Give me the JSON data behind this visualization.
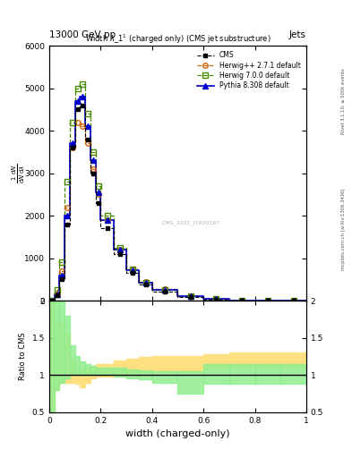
{
  "title": "Width $\\lambda\\_1^1$ (charged only) (CMS jet substructure)",
  "header_left": "13000 GeV pp",
  "header_right": "Jets",
  "xlabel": "width (charged-only)",
  "ylabel_ratio": "Ratio to CMS",
  "watermark": "CMS_2021_I1920187",
  "ylim_main": [
    0,
    6000
  ],
  "ylim_ratio": [
    0.5,
    2.0
  ],
  "xlim": [
    0.0,
    1.0
  ],
  "bin_edges": [
    0.0,
    0.02,
    0.04,
    0.06,
    0.08,
    0.1,
    0.12,
    0.14,
    0.16,
    0.18,
    0.2,
    0.25,
    0.3,
    0.35,
    0.4,
    0.5,
    0.6,
    0.7,
    0.8,
    0.9,
    1.0
  ],
  "cms_y": [
    0,
    120,
    500,
    1800,
    3600,
    4500,
    4600,
    3800,
    3000,
    2300,
    1700,
    1100,
    650,
    380,
    220,
    90,
    30,
    8,
    3,
    1
  ],
  "herwig_pp_y": [
    0,
    180,
    700,
    2200,
    3600,
    4200,
    4100,
    3700,
    3100,
    2500,
    1900,
    1200,
    750,
    450,
    270,
    110,
    40,
    12,
    4,
    1
  ],
  "herwig7_y": [
    0,
    250,
    900,
    2800,
    4200,
    5000,
    5100,
    4400,
    3500,
    2700,
    2000,
    1250,
    750,
    430,
    250,
    100,
    35,
    10,
    3,
    1
  ],
  "pythia_y": [
    0,
    150,
    600,
    2000,
    3700,
    4700,
    4800,
    4100,
    3300,
    2550,
    1900,
    1200,
    720,
    420,
    250,
    100,
    35,
    10,
    3,
    1
  ],
  "herwig_pp_ratio_lo": [
    0.5,
    0.8,
    0.9,
    0.9,
    0.9,
    0.88,
    0.84,
    0.9,
    0.95,
    0.98,
    0.98,
    1.0,
    1.02,
    1.04,
    1.05,
    1.05,
    1.08,
    1.1,
    1.1,
    1.1
  ],
  "herwig_pp_ratio_hi": [
    2.0,
    1.7,
    1.7,
    1.55,
    1.2,
    1.08,
    1.06,
    1.1,
    1.12,
    1.15,
    1.15,
    1.2,
    1.22,
    1.24,
    1.25,
    1.25,
    1.28,
    1.3,
    1.3,
    1.3
  ],
  "herwig7_ratio_lo": [
    0.5,
    0.8,
    0.9,
    0.95,
    1.0,
    1.0,
    1.0,
    1.0,
    1.0,
    1.0,
    1.0,
    0.98,
    0.96,
    0.94,
    0.9,
    0.75,
    0.88,
    0.88,
    0.88,
    0.88
  ],
  "herwig7_ratio_hi": [
    2.0,
    2.0,
    2.0,
    1.8,
    1.4,
    1.25,
    1.18,
    1.15,
    1.12,
    1.1,
    1.1,
    1.1,
    1.08,
    1.06,
    1.05,
    1.05,
    1.15,
    1.15,
    1.15,
    1.15
  ],
  "color_cms": "#000000",
  "color_herwig_pp": "#d4640a",
  "color_herwig7": "#4a8a00",
  "color_pythia": "#0000cc",
  "color_herwig_pp_band": "#ffe080",
  "color_herwig7_band": "#90ee90"
}
